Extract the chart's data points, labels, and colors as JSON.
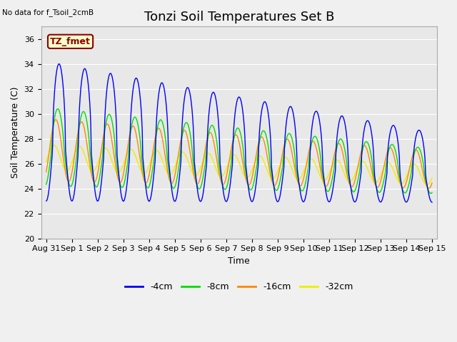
{
  "title": "Tonzi Soil Temperatures Set B",
  "xlabel": "Time",
  "ylabel": "Soil Temperature (C)",
  "no_data_label": "No data for f_Tsoil_2cmB",
  "tz_fmet_label": "TZ_fmet",
  "ylim": [
    20,
    37
  ],
  "yticks": [
    20,
    22,
    24,
    26,
    28,
    30,
    32,
    34,
    36
  ],
  "xtick_labels": [
    "Aug 31",
    "Sep 1",
    "Sep 2",
    "Sep 3",
    "Sep 4",
    "Sep 5",
    "Sep 6",
    "Sep 7",
    "Sep 8",
    "Sep 9",
    "Sep 10",
    "Sep 11",
    "Sep 12",
    "Sep 13",
    "Sep 14",
    "Sep 15"
  ],
  "colors": {
    "4cm": "#0000ff",
    "8cm": "#00dd00",
    "16cm": "#ff8800",
    "32cm": "#eeee00"
  },
  "legend_labels": [
    "-4cm",
    "-8cm",
    "-16cm",
    "-32cm"
  ],
  "plot_bg_color": "#e8e8e8",
  "fig_bg_color": "#f0f0f0",
  "title_fontsize": 13,
  "axis_label_fontsize": 9,
  "tick_label_fontsize": 8,
  "n_days": 15,
  "n_points_per_day": 48
}
